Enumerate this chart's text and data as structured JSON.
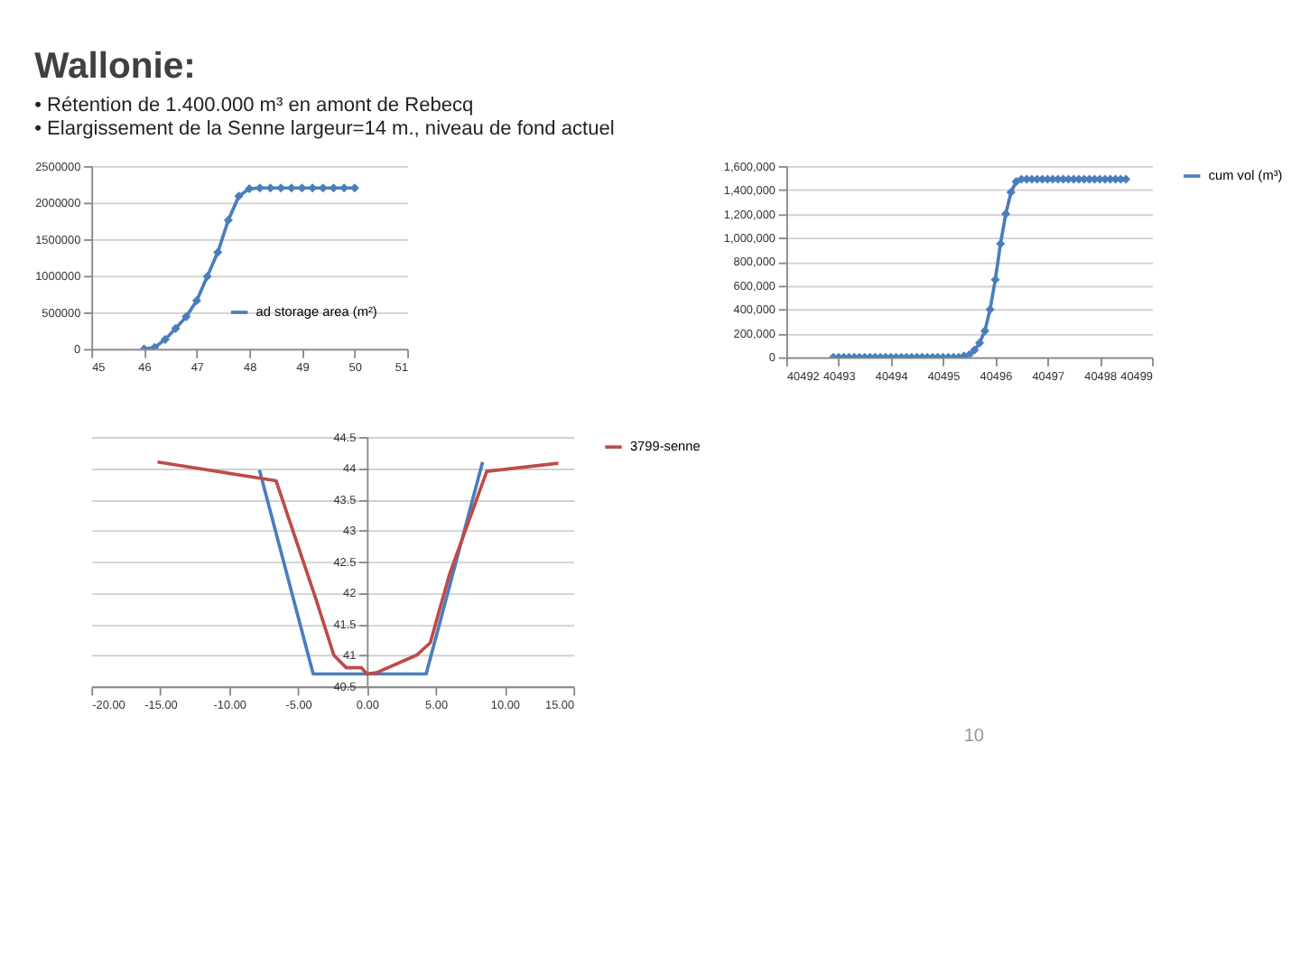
{
  "chart_data": [
    {
      "type": "line",
      "title": "Wallonie:",
      "subtitle": [
        "•  Rétention de 1.400.000 m³ en amont de Rebecq",
        "•  Elargissement de la Senne largeur=14 m., niveau de fond actuel"
      ],
      "marker": "diamond",
      "grid": "y",
      "legend": "bottom right",
      "x": [
        46,
        46.2,
        46.4,
        46.6,
        46.8,
        47,
        47.2,
        47.4,
        47.6,
        47.8,
        48,
        48.2,
        48.4,
        48.6,
        48.8,
        49,
        49.2,
        49.4,
        49.6,
        49.8,
        50
      ],
      "series": [
        {
          "name": "ad storage area (m²)",
          "color": "#4a7ebb",
          "values": [
            0,
            20000,
            130000,
            280000,
            440000,
            660000,
            990000,
            1320000,
            1760000,
            2090000,
            2190000,
            2200000,
            2200000,
            2200000,
            2200000,
            2200000,
            2200000,
            2200000,
            2200000,
            2200000,
            2200000
          ]
        }
      ],
      "xlim": [
        45,
        51
      ],
      "xticks": [
        45,
        46,
        47,
        48,
        49,
        50,
        51
      ],
      "ylim": [
        0,
        2500000
      ],
      "yticks": [
        0,
        500000,
        1000000,
        1500000,
        2000000,
        2500000
      ]
    },
    {
      "type": "line",
      "marker": "diamond",
      "grid": "y",
      "legend": "right",
      "x": [
        40492.9,
        40493.0,
        40493.1,
        40493.2,
        40493.3,
        40493.4,
        40493.5,
        40493.6,
        40493.7,
        40493.8,
        40493.9,
        40494.0,
        40494.1,
        40494.2,
        40494.3,
        40494.4,
        40494.5,
        40494.6,
        40494.7,
        40494.8,
        40494.9,
        40495.0,
        40495.1,
        40495.2,
        40495.3,
        40495.4,
        40495.5,
        40495.6,
        40495.7,
        40495.8,
        40495.9,
        40496.0,
        40496.1,
        40496.2,
        40496.3,
        40496.4,
        40496.5,
        40496.6,
        40496.7,
        40496.8,
        40496.9,
        40497.0,
        40497.1,
        40497.2,
        40497.3,
        40497.4,
        40497.5,
        40497.6,
        40497.7,
        40497.8,
        40497.9,
        40498.0,
        40498.1,
        40498.2,
        40498.3,
        40498.4,
        40498.5
      ],
      "series": [
        {
          "name": "cum vol (m³)",
          "color": "#4a7ebb",
          "values": [
            0,
            0,
            0,
            0,
            0,
            0,
            0,
            0,
            0,
            0,
            0,
            0,
            0,
            0,
            0,
            0,
            0,
            0,
            0,
            0,
            0,
            0,
            0,
            0,
            0,
            10000,
            20000,
            60000,
            120000,
            220000,
            400000,
            650000,
            950000,
            1200000,
            1380000,
            1470000,
            1490000,
            1490000,
            1490000,
            1490000,
            1490000,
            1490000,
            1490000,
            1490000,
            1490000,
            1490000,
            1490000,
            1490000,
            1490000,
            1490000,
            1490000,
            1490000,
            1490000,
            1490000,
            1490000,
            1490000,
            1490000
          ]
        }
      ],
      "xlim": [
        40492,
        40499
      ],
      "xticks": [
        40492,
        40493,
        40494,
        40495,
        40496,
        40497,
        40498,
        40499
      ],
      "ylim": [
        0,
        1600000
      ],
      "yticks": [
        {
          "value": 0,
          "label": "0"
        },
        {
          "value": 200000,
          "label": "200,000"
        },
        {
          "value": 400000,
          "label": "400,000"
        },
        {
          "value": 600000,
          "label": "600,000"
        },
        {
          "value": 800000,
          "label": "800,000"
        },
        {
          "value": 1000000,
          "label": "1,000,000"
        },
        {
          "value": 1200000,
          "label": "1,200,000"
        },
        {
          "value": 1400000,
          "label": "1,400,000"
        },
        {
          "value": 1600000,
          "label": "1,600,000"
        }
      ]
    },
    {
      "type": "line",
      "grid": "y",
      "legend": "right",
      "annotations": [
        "10"
      ],
      "series": [
        {
          "color": "#4a7ebb",
          "x": [
            -7.8,
            -3.9,
            4.3,
            8.4
          ],
          "values": [
            43.97,
            40.7,
            40.7,
            44.1
          ]
        },
        {
          "name": "3799-senne",
          "color": "#be4b48",
          "x": [
            -15.2,
            -6.6,
            -3.7,
            -2.4,
            -1.5,
            -0.4,
            0,
            0.7,
            3.6,
            4.6,
            6.0,
            8.7,
            13.9
          ],
          "values": [
            44.1,
            43.8,
            41.9,
            41.0,
            40.8,
            40.8,
            40.7,
            40.72,
            41.0,
            41.2,
            42.3,
            43.95,
            44.08
          ]
        }
      ],
      "xlim": [
        -20,
        15
      ],
      "xticks": [
        {
          "value": -20,
          "label": "-20.00"
        },
        {
          "value": -15,
          "label": "-15.00"
        },
        {
          "value": -10,
          "label": "-10.00"
        },
        {
          "value": -5,
          "label": "-5.00"
        },
        {
          "value": 0,
          "label": "0.00"
        },
        {
          "value": 5,
          "label": "5.00"
        },
        {
          "value": 10,
          "label": "10.00"
        },
        {
          "value": 15,
          "label": "15.00"
        }
      ],
      "ylim": [
        40.5,
        44.5
      ],
      "yticks": [
        40.5,
        41,
        41.5,
        42,
        42.5,
        43,
        43.5,
        44,
        44.5
      ]
    }
  ]
}
